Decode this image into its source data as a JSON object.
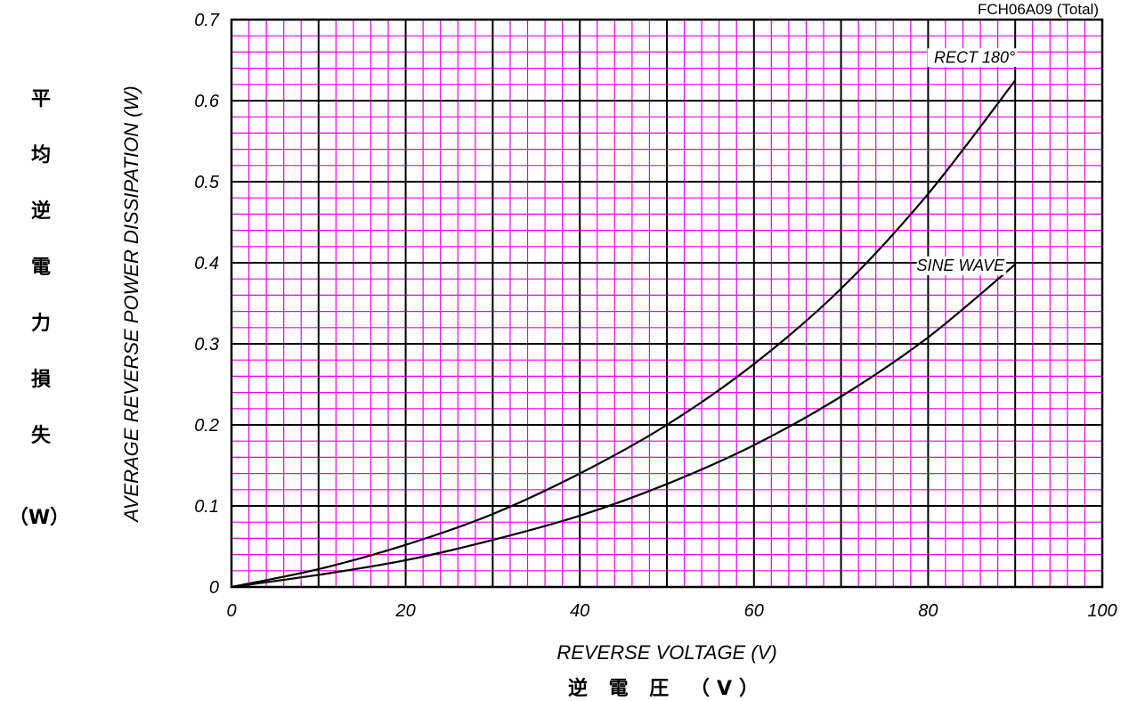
{
  "chart_data": {
    "type": "line",
    "model_label": "FCH06A09 (Total)",
    "xlabel": "REVERSE VOLTAGE (V)",
    "xlabel_jp": "逆 電 圧 （V）",
    "ylabel": "AVERAGE REVERSE POWER DISSIPATION (W)",
    "ylabel_jp_chars": [
      "平",
      "均",
      "逆",
      "電",
      "力",
      "損",
      "失"
    ],
    "ylabel_jp_unit": "（W）",
    "xlim": [
      0,
      100
    ],
    "ylim": [
      0,
      0.7
    ],
    "x_ticks": [
      "0",
      "20",
      "40",
      "60",
      "80",
      "100"
    ],
    "y_ticks": [
      "0",
      "0.1",
      "0.2",
      "0.3",
      "0.4",
      "0.5",
      "0.6",
      "0.7"
    ],
    "grid": true,
    "colors": {
      "minor_grid": "#ee00ee",
      "major_grid": "#000000",
      "curve": "#000000"
    },
    "series": [
      {
        "name": "RECT 180°",
        "x": [
          0,
          10,
          20,
          30,
          40,
          50,
          60,
          70,
          80,
          90
        ],
        "y": [
          0,
          0.022,
          0.052,
          0.09,
          0.14,
          0.2,
          0.275,
          0.368,
          0.485,
          0.625
        ]
      },
      {
        "name": "SINE WAVE",
        "x": [
          0,
          10,
          20,
          30,
          40,
          50,
          60,
          70,
          80,
          90
        ],
        "y": [
          0,
          0.015,
          0.033,
          0.058,
          0.088,
          0.127,
          0.175,
          0.235,
          0.308,
          0.398
        ]
      }
    ]
  }
}
